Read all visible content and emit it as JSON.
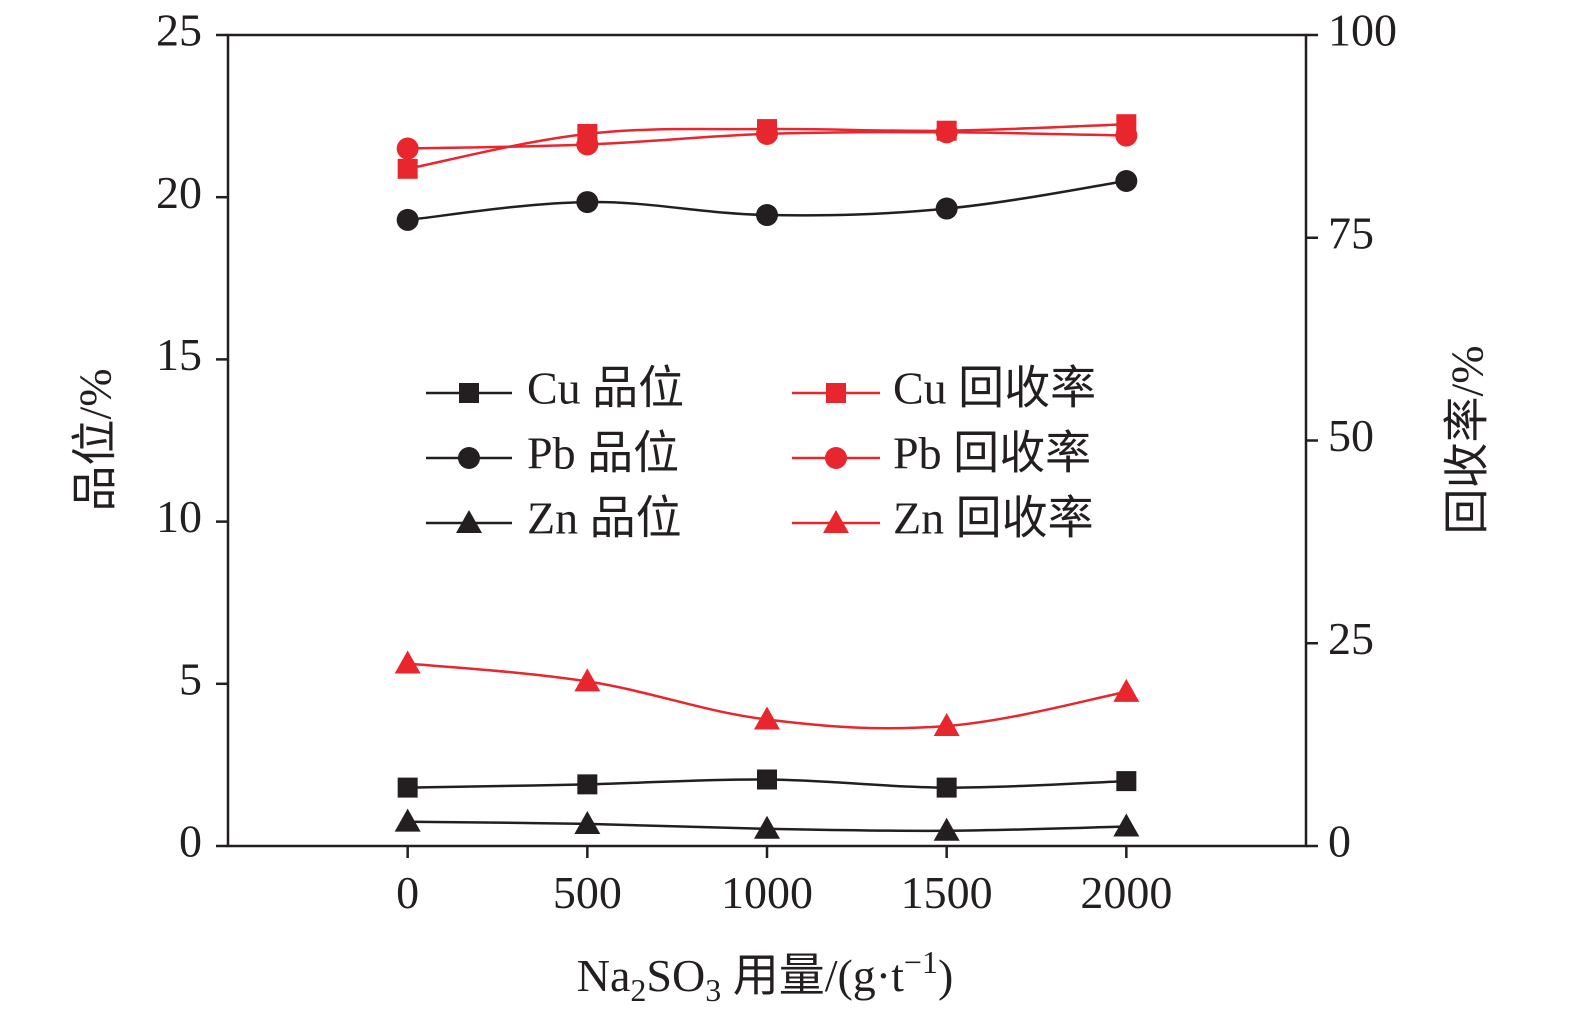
{
  "chart_data": {
    "type": "line",
    "title": "",
    "x": [
      0,
      500,
      1000,
      1500,
      2000
    ],
    "xlabel": {
      "prefix": "Na",
      "sub1": "2",
      "mid": "SO",
      "sub2": "3",
      "unit_open": " 用量/(g·t",
      "sup": "−1",
      "unit_close": ")"
    },
    "ylabel_left": "品位/%",
    "ylabel_right": "回收率/%",
    "xlim": [
      -500,
      2500
    ],
    "ylim_left": [
      0,
      25
    ],
    "ylim_right": [
      0,
      100
    ],
    "x_ticks": [
      0,
      500,
      1000,
      1500,
      2000
    ],
    "y_ticks_left": [
      0,
      5,
      10,
      15,
      20,
      25
    ],
    "y_ticks_right": [
      0,
      25,
      50,
      75,
      100
    ],
    "grid": false,
    "legend_position": "center",
    "colors": {
      "black": "#231f20",
      "red": "#e8262e"
    },
    "series": [
      {
        "name": "Cu 品位",
        "axis": "left",
        "color": "black",
        "marker": "square",
        "values": [
          1.8,
          1.9,
          2.05,
          1.8,
          2.0
        ]
      },
      {
        "name": "Pb 品位",
        "axis": "left",
        "color": "black",
        "marker": "circle",
        "values": [
          19.3,
          19.85,
          19.45,
          19.65,
          20.5
        ]
      },
      {
        "name": "Zn 品位",
        "axis": "left",
        "color": "black",
        "marker": "triangle",
        "values": [
          0.75,
          0.68,
          0.53,
          0.47,
          0.6
        ]
      },
      {
        "name": "Cu 回收率",
        "axis": "right",
        "color": "red",
        "marker": "square",
        "values": [
          83.5,
          87.8,
          88.4,
          88.2,
          89.0
        ]
      },
      {
        "name": "Pb 回收率",
        "axis": "right",
        "color": "red",
        "marker": "circle",
        "values": [
          86.0,
          86.5,
          87.8,
          88.0,
          87.6
        ]
      },
      {
        "name": "Zn 回收率",
        "axis": "right",
        "color": "red",
        "marker": "triangle",
        "values": [
          22.5,
          20.3,
          15.6,
          14.8,
          19.0
        ]
      }
    ]
  }
}
